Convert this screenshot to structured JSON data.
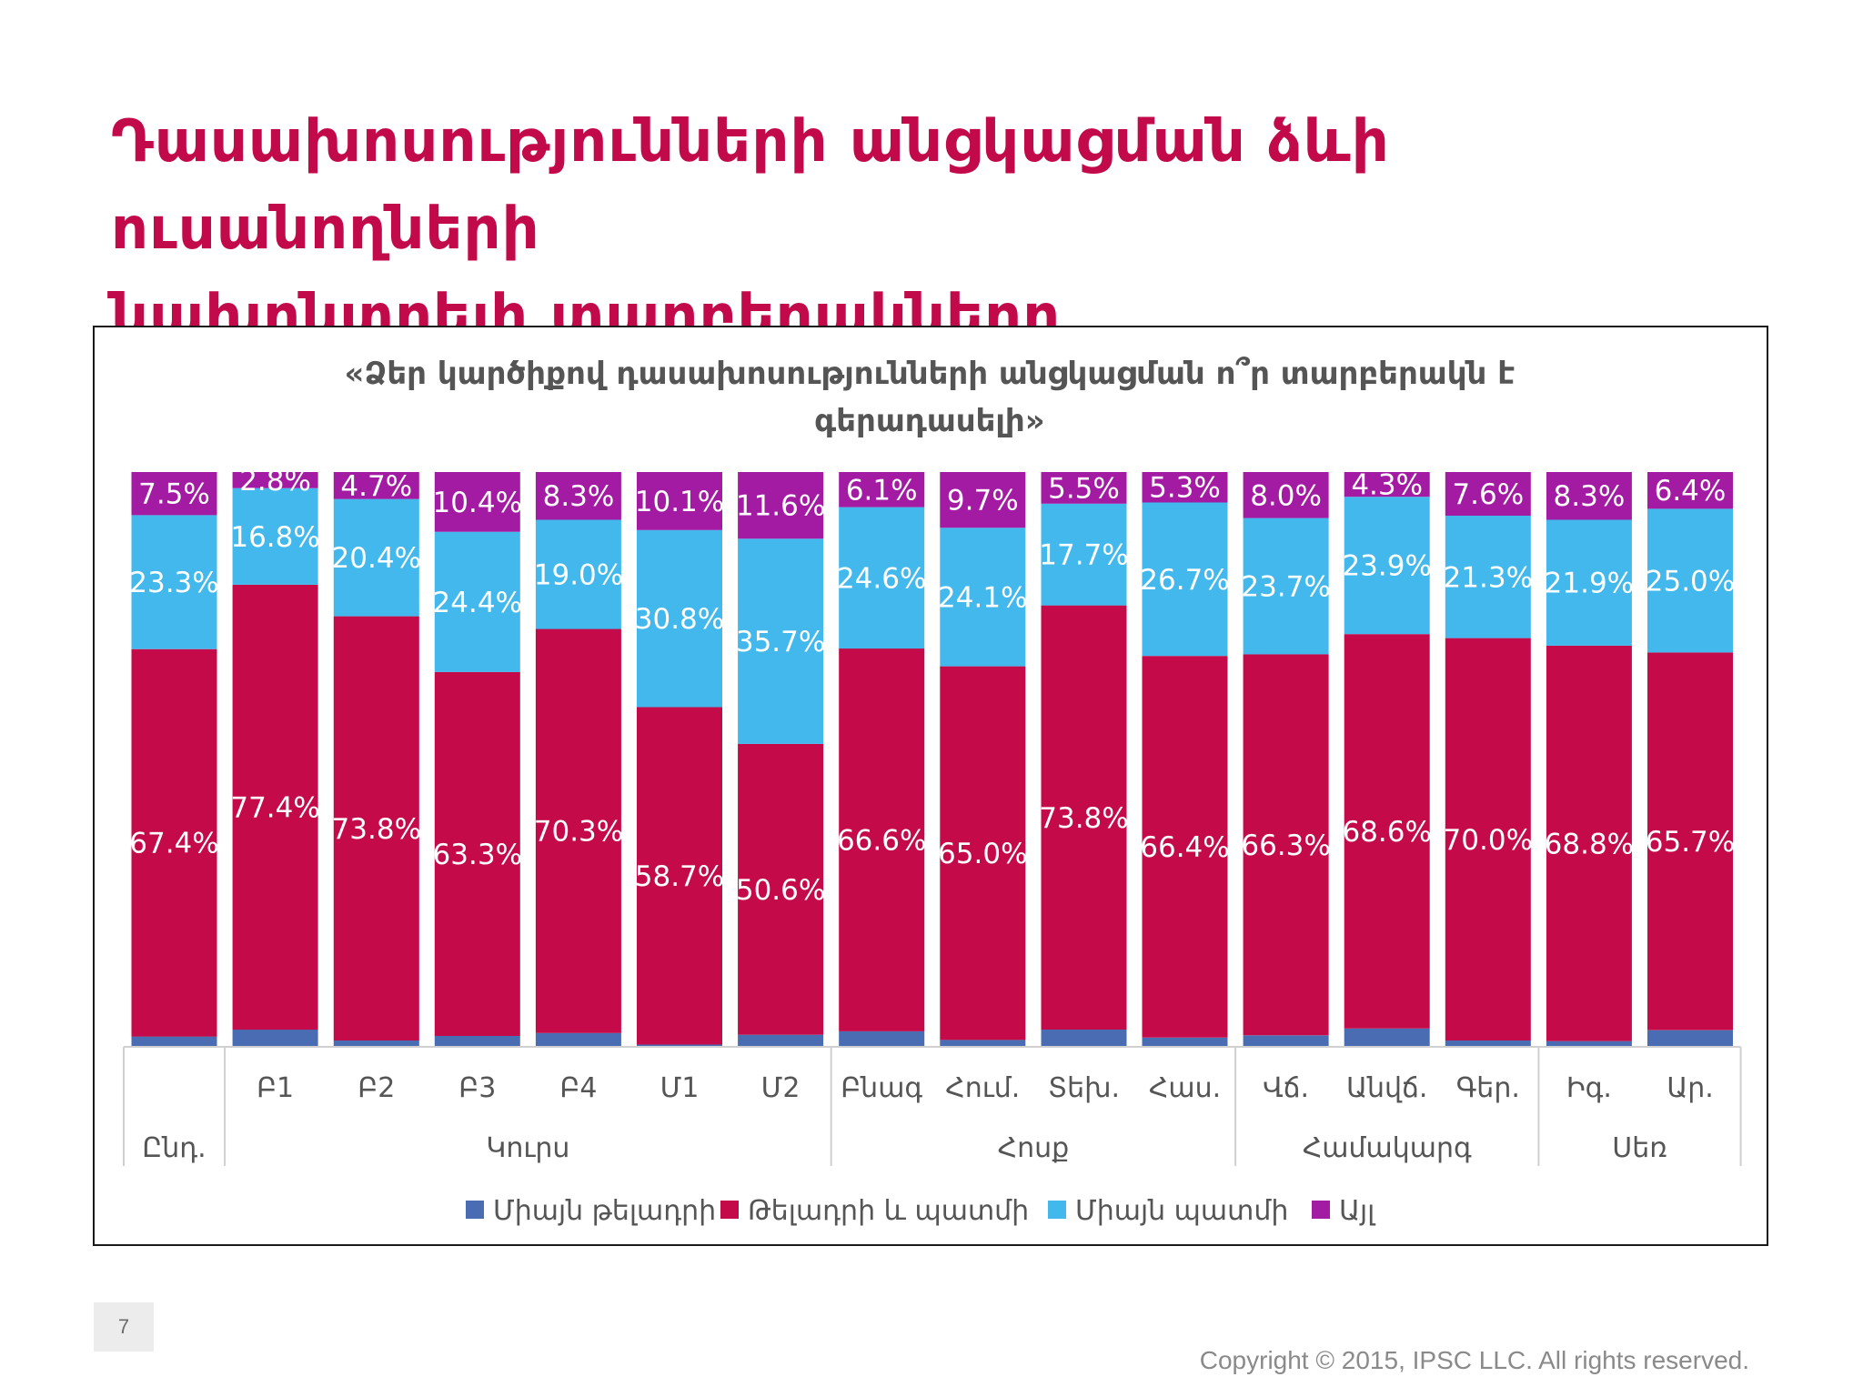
{
  "slide": {
    "title_line1": "Դասախոսությունների անցկացման ձևի ուսանողների",
    "title_line2": "նախընտրելի տարբերակները",
    "page_number": "7",
    "copyright": "Copyright © 2015, IPSC LLC. All rights reserved."
  },
  "chart_data": {
    "type": "bar",
    "stacked": true,
    "percent": true,
    "title_line1": "«Ձեր կարծիքով դասախոսությունների անցկացման ո՞ր տարբերակն է",
    "title_line2": "գերադասելի»",
    "categories": [
      "",
      "Բ1",
      "Բ2",
      "Բ3",
      "Բ4",
      "Մ1",
      "Մ2",
      "Բնագ",
      "Հում.",
      "Տեխ.",
      "Հաս.",
      "Վճ.",
      "Անվճ.",
      "Գեր.",
      "Իգ.",
      "Ար."
    ],
    "groups": [
      {
        "label": "Ընդ.",
        "start": 0,
        "end": 0
      },
      {
        "label": "Կուրս",
        "start": 1,
        "end": 6
      },
      {
        "label": "Հոսք",
        "start": 7,
        "end": 10
      },
      {
        "label": "Համակարգ",
        "start": 11,
        "end": 13
      },
      {
        "label": "Սեռ",
        "start": 14,
        "end": 15
      }
    ],
    "series": [
      {
        "name": "Միայն թելադրի",
        "color": "#4a6cb3",
        "show_labels": false,
        "values": [
          1.8,
          3.0,
          1.1,
          1.9,
          2.4,
          0.4,
          2.1,
          2.7,
          1.2,
          3.0,
          1.6,
          2.0,
          3.2,
          1.1,
          1.0,
          2.9
        ]
      },
      {
        "name": "Թելադրի և պատմի",
        "color": "#c40a48",
        "show_labels": true,
        "values": [
          67.4,
          77.4,
          73.8,
          63.3,
          70.3,
          58.7,
          50.6,
          66.6,
          65.0,
          73.8,
          66.4,
          66.3,
          68.6,
          70.0,
          68.8,
          65.7
        ],
        "labels": [
          "67.4%",
          "77.4%",
          "73.8%",
          "63.3%",
          "70.3%",
          "58.7%",
          "50.6%",
          "66.6%",
          "65.0%",
          "73.8%",
          "66.4%",
          "66.3%",
          "68.6%",
          "70.0%",
          "68.8%",
          "65.7%"
        ]
      },
      {
        "name": "Միայն պատմի",
        "color": "#42b8ec",
        "show_labels": true,
        "values": [
          23.3,
          16.8,
          20.4,
          24.4,
          19.0,
          30.8,
          35.7,
          24.6,
          24.1,
          17.7,
          26.7,
          23.7,
          23.9,
          21.3,
          21.9,
          25.0
        ],
        "labels": [
          "23.3%",
          "16.8%",
          "20.4%",
          "24.4%",
          "19.0%",
          "30.8%",
          "35.7%",
          "24.6%",
          "24.1%",
          "17.7%",
          "26.7%",
          "23.7%",
          "23.9%",
          "21.3%",
          "21.9%",
          "25.0%"
        ]
      },
      {
        "name": "Այլ",
        "color": "#a31ba3",
        "show_labels": true,
        "values": [
          7.5,
          2.8,
          4.7,
          10.4,
          8.3,
          10.1,
          11.6,
          6.1,
          9.7,
          5.5,
          5.3,
          8.0,
          4.3,
          7.6,
          8.3,
          6.4
        ],
        "labels": [
          "7.5%",
          "2.8%",
          "4.7%",
          "10.4%",
          "8.3%",
          "10.1%",
          "11.6%",
          "6.1%",
          "9.7%",
          "5.5%",
          "5.3%",
          "8.0%",
          "4.3%",
          "7.6%",
          "8.3%",
          "6.4%"
        ]
      }
    ],
    "ylim": [
      0,
      100
    ],
    "legend_position": "bottom",
    "grid": false
  }
}
